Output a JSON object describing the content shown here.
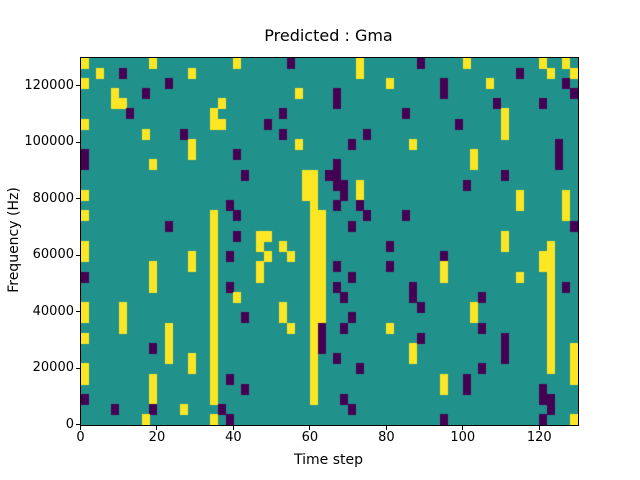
{
  "figure": {
    "background": "#ffffff"
  },
  "chart_data": {
    "type": "heatmap",
    "title": "Predicted : Gma",
    "xlabel": "Time step",
    "ylabel": "Frequency (Hz)",
    "xlim": [
      0,
      130
    ],
    "ylim": [
      0,
      130000
    ],
    "xticks": [
      0,
      20,
      40,
      60,
      80,
      100,
      120
    ],
    "yticks": [
      0,
      20000,
      40000,
      60000,
      80000,
      100000,
      120000
    ],
    "grid": false,
    "legend": "none",
    "colormap": {
      "teal": "#21918c",
      "yellow": "#fde725",
      "purple": "#440154"
    },
    "cell_encoding": {
      ".": "teal",
      "y": "yellow",
      "p": "purple"
    },
    "grid_size": {
      "cols": 65,
      "rows": 36
    },
    "matrix": [
      "y........y..........y......p........y.......p.....y.........y..y.",
      "..y..p........y.....................y....................p...y..y",
      "y..........p............................y......p.....y.........p.",
      "....y...p...................y....p.............p................p",
      "....yy............y..............p....................p.....p....",
      "......p..........y........p...............p............y.........",
      "y................yy.....p........................p.....y.........",
      "........y....p............p..........p.................y.........",
      "..............y.............y......p.......y..................p..",
      "p.............y.....p..............................y..........p..",
      "p........y.......................p.................y..........p..",
      ".....................p.......yy.pp.....................p.........",
      ".............................yy..pp.y.............p..............",
      "y............................yy...p.y....................y.....y.",
      "...................p..........y..p..p....................y.....y.",
      "y................y..p.........yy.....p....p....................y.",
      "...........p.....y............yy...p............................p",
      ".................y..p..yy.....yy.......................y.........",
      "y................y.....y..y...yy........p..............y.....y...",
      "y.............y..y.p....y..y..yy...............p............yy...",
      ".........y....y..y.....y......yy.p......p......y............yy...",
      "p........y.......y.....y......yy...p...........y.........y...y...",
      ".........y.......y.p..........yy.p.........p.................y.p.",
      ".................y..y.........yy..p........p........p........y...",
      "y....y...........y........y...yy............p......y.........y...",
      "y....y...........y...p....y...yy...p...............y.........y...",
      ".....y.....y.....y.........y..yp..p.....y...........p........y...",
      "y..........y.....y............yp............p..........p.....y...",
      ".........p.y.....y............yp...........y...........p.....y..y",
      "...........y..y..y............y..p.........y...........p.....y..y",
      "y.............y..y............y.....p...............p........y..y",
      "y........y.......y.p..........y................y..p.............y",
      ".........y.......y...p........y................y..p.........p....",
      "p........y.......y............y...p.........................pp...",
      "....p....p...y....p................p.........................p...",
      "........y........y.p...........................p............p...y"
    ]
  }
}
